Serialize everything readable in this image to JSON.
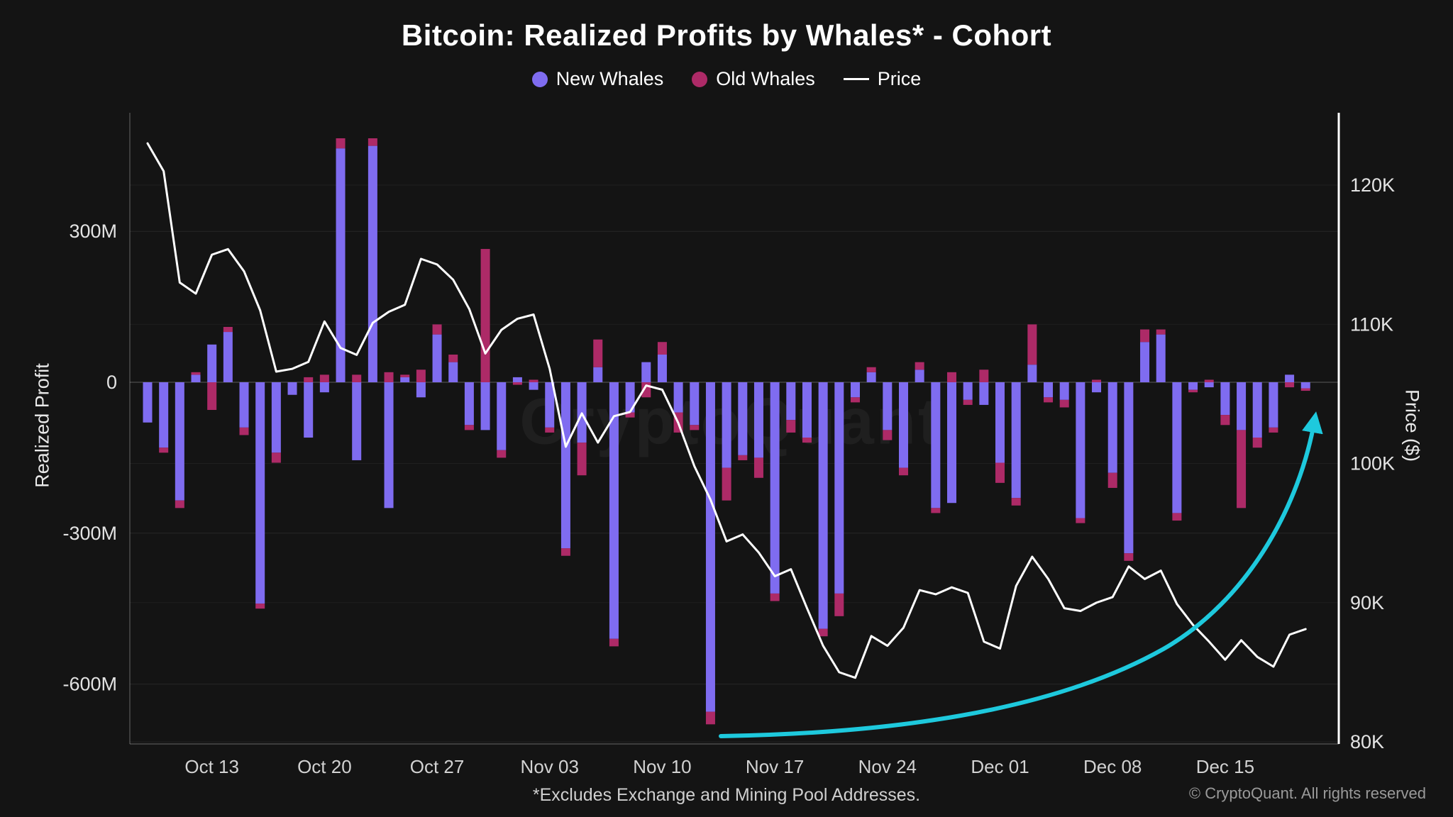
{
  "header": {
    "title": "Bitcoin: Realized Profits by Whales* - Cohort"
  },
  "legend": [
    {
      "label": "New Whales",
      "color": "#7f6cf0",
      "type": "dot"
    },
    {
      "label": "Old Whales",
      "color": "#ad2a67",
      "type": "dot"
    },
    {
      "label": "Price",
      "color": "#ffffff",
      "type": "line"
    }
  ],
  "watermark": "CryptoQuant",
  "footer": {
    "note": "*Excludes Exchange and Mining Pool Addresses.",
    "copyright": "© CryptoQuant. All rights reserved"
  },
  "axes": {
    "left_title": "Realized Profit",
    "right_title": "Price ($)"
  },
  "chart_data": {
    "type": "bar",
    "subtype": "stacked bars with overlaid line",
    "title": "Bitcoin: Realized Profits by Whales* - Cohort",
    "stacked": true,
    "grid": true,
    "legend_position": "top-center",
    "dates": [
      "Oct 09",
      "Oct 10",
      "Oct 11",
      "Oct 12",
      "Oct 13",
      "Oct 14",
      "Oct 15",
      "Oct 16",
      "Oct 17",
      "Oct 18",
      "Oct 19",
      "Oct 20",
      "Oct 21",
      "Oct 22",
      "Oct 23",
      "Oct 24",
      "Oct 25",
      "Oct 26",
      "Oct 27",
      "Oct 28",
      "Oct 29",
      "Oct 30",
      "Oct 31",
      "Nov 01",
      "Nov 02",
      "Nov 03",
      "Nov 04",
      "Nov 05",
      "Nov 06",
      "Nov 07",
      "Nov 08",
      "Nov 09",
      "Nov 10",
      "Nov 11",
      "Nov 12",
      "Nov 13",
      "Nov 14",
      "Nov 15",
      "Nov 16",
      "Nov 17",
      "Nov 18",
      "Nov 19",
      "Nov 20",
      "Nov 21",
      "Nov 22",
      "Nov 23",
      "Nov 24",
      "Nov 25",
      "Nov 26",
      "Nov 27",
      "Nov 28",
      "Nov 29",
      "Nov 30",
      "Dec 01",
      "Dec 02",
      "Dec 03",
      "Dec 04",
      "Dec 05",
      "Dec 06",
      "Dec 07",
      "Dec 08",
      "Dec 09",
      "Dec 10",
      "Dec 11",
      "Dec 12",
      "Dec 13",
      "Dec 14",
      "Dec 15",
      "Dec 16",
      "Dec 17",
      "Dec 18",
      "Dec 19",
      "Dec 20"
    ],
    "series": [
      {
        "name": "New Whales",
        "color": "#7f6cf0",
        "unit": "USD millions (realized profit)",
        "values": [
          -80,
          -130,
          -235,
          15,
          75,
          100,
          -90,
          -440,
          -140,
          -25,
          -110,
          -20,
          465,
          -155,
          470,
          -250,
          10,
          -30,
          95,
          40,
          -85,
          -95,
          -135,
          10,
          -15,
          -90,
          -330,
          -120,
          30,
          -510,
          -60,
          40,
          55,
          -60,
          -85,
          -655,
          -170,
          -145,
          -150,
          -420,
          -75,
          -110,
          -490,
          -420,
          -30,
          20,
          -95,
          -170,
          25,
          -250,
          -240,
          -35,
          -45,
          -160,
          -230,
          35,
          -30,
          -35,
          -270,
          -20,
          -180,
          -340,
          80,
          95,
          -260,
          -15,
          -10,
          -65,
          -95,
          -110,
          -90,
          15,
          -12
        ]
      },
      {
        "name": "Old Whales",
        "color": "#ad2a67",
        "unit": "USD millions (realized profit)",
        "values": [
          0,
          -10,
          -15,
          5,
          -55,
          10,
          -15,
          -10,
          -20,
          0,
          10,
          15,
          20,
          15,
          15,
          20,
          5,
          25,
          20,
          15,
          -10,
          265,
          -15,
          -5,
          5,
          -10,
          -15,
          -65,
          55,
          -15,
          -10,
          -30,
          25,
          -40,
          -10,
          -25,
          -65,
          -10,
          -40,
          -15,
          -25,
          -10,
          -15,
          -45,
          -10,
          10,
          -20,
          -15,
          15,
          -10,
          20,
          -10,
          25,
          -40,
          -15,
          80,
          -10,
          -15,
          -10,
          5,
          -30,
          -15,
          25,
          10,
          -15,
          -5,
          5,
          -20,
          -155,
          -20,
          -10,
          -10,
          -5
        ]
      }
    ],
    "price": {
      "name": "Price",
      "color": "#ffffff",
      "unit": "USD thousands",
      "values": [
        123.0,
        121.0,
        113.0,
        112.2,
        115.0,
        115.4,
        113.8,
        111.0,
        106.6,
        106.8,
        107.3,
        110.2,
        108.3,
        107.8,
        110.1,
        110.9,
        111.4,
        114.7,
        114.3,
        113.2,
        111.1,
        107.9,
        109.6,
        110.4,
        110.7,
        106.8,
        101.2,
        103.6,
        101.5,
        103.4,
        103.7,
        105.6,
        105.3,
        102.9,
        99.8,
        97.4,
        94.4,
        94.9,
        93.6,
        91.9,
        92.4,
        89.6,
        86.9,
        85.0,
        84.6,
        87.6,
        86.9,
        88.2,
        90.9,
        90.6,
        91.1,
        90.7,
        87.2,
        86.7,
        91.2,
        93.3,
        91.7,
        89.6,
        89.4,
        90.0,
        90.4,
        92.6,
        91.7,
        92.3,
        89.9,
        88.4,
        87.2,
        85.9,
        87.3,
        86.1,
        85.4,
        87.7,
        88.1
      ]
    },
    "left_axis": {
      "label": "Realized Profit",
      "ticks": [
        "300M",
        "0",
        "-300M",
        "-600M"
      ],
      "tick_values": [
        300,
        0,
        -300,
        -600
      ],
      "range": [
        -750,
        500
      ]
    },
    "right_axis": {
      "label": "Price ($)",
      "ticks": [
        "120K",
        "110K",
        "100K",
        "90K",
        "80K"
      ],
      "tick_values": [
        120,
        110,
        100,
        90,
        80
      ],
      "range": [
        79,
        125
      ]
    },
    "x_ticks": [
      {
        "label": "Oct 13",
        "index": 4
      },
      {
        "label": "Oct 20",
        "index": 11
      },
      {
        "label": "Oct 27",
        "index": 18
      },
      {
        "label": "Nov 03",
        "index": 25
      },
      {
        "label": "Nov 10",
        "index": 32
      },
      {
        "label": "Nov 17",
        "index": 39
      },
      {
        "label": "Nov 24",
        "index": 46
      },
      {
        "label": "Dec 01",
        "index": 53
      },
      {
        "label": "Dec 08",
        "index": 60
      },
      {
        "label": "Dec 15",
        "index": 67
      }
    ],
    "annotation": {
      "type": "trend-arrow",
      "color": "#1ec9dd",
      "description": "cyan exponential arrow rising from mid-November bottom toward upper right edge"
    }
  }
}
